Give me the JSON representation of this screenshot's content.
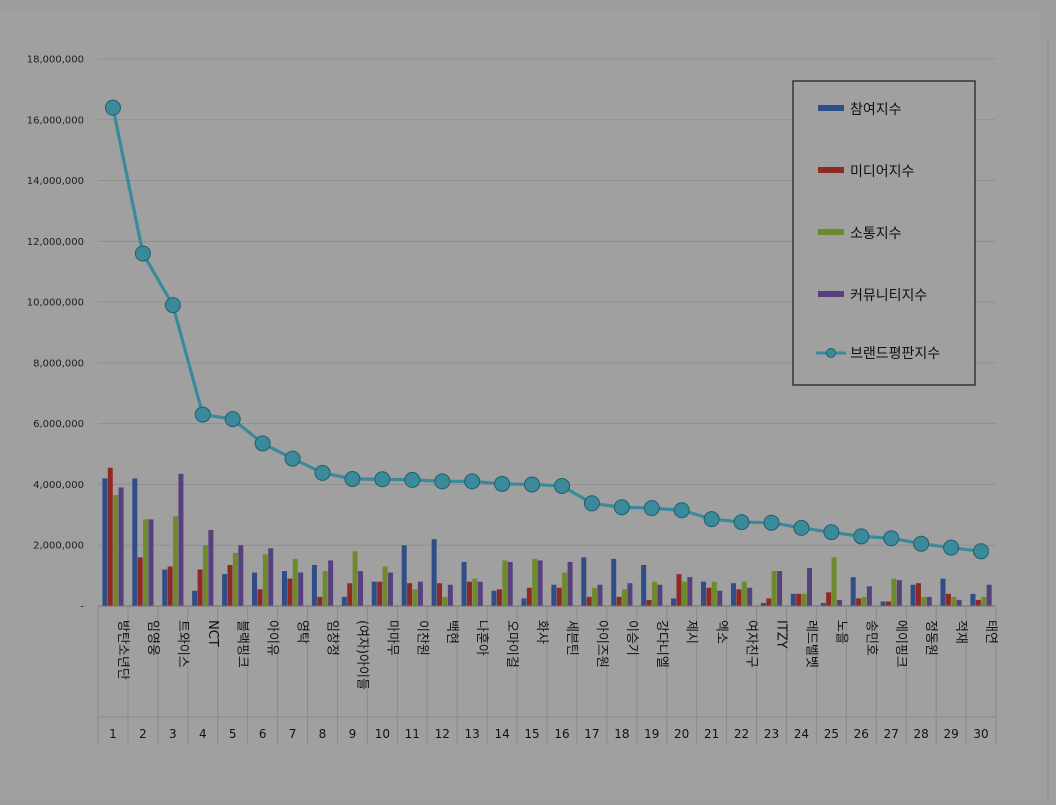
{
  "colors": {
    "background": "#9e9e9e",
    "plot_background": "#a0a0a0",
    "participation": "#2f4d86",
    "media": "#8e2a26",
    "communication": "#6f8a2c",
    "community": "#57407d",
    "brand": "#3a8a9c"
  },
  "chart_data": {
    "type": "bar",
    "title": "",
    "xlabel": "",
    "ylabel": "",
    "ylim": [
      0,
      18000000
    ],
    "y_ticks": [
      0,
      2000000,
      4000000,
      6000000,
      8000000,
      10000000,
      12000000,
      14000000,
      16000000,
      18000000
    ],
    "y_tick_labels": [
      "-",
      "2,000,000",
      "4,000,000",
      "6,000,000",
      "8,000,000",
      "10,000,000",
      "12,000,000",
      "14,000,000",
      "16,000,000",
      "18,000,000"
    ],
    "grid": true,
    "legend_position": "top-right",
    "categories": [
      "방탄소년단",
      "임영웅",
      "트와이스",
      "NCT",
      "블랙핑크",
      "아이유",
      "영탁",
      "임창정",
      "(여자)아이들",
      "마마무",
      "이찬원",
      "백현",
      "나훈아",
      "오마이걸",
      "화사",
      "세븐틴",
      "아이즈원",
      "이승기",
      "강다니엘",
      "제시",
      "엑소",
      "여자친구",
      "ITZY",
      "레드벨벳",
      "노을",
      "송민호",
      "에이핑크",
      "정동원",
      "적재",
      "태연"
    ],
    "ranks": [
      "1",
      "2",
      "3",
      "4",
      "5",
      "6",
      "7",
      "8",
      "9",
      "10",
      "11",
      "12",
      "13",
      "14",
      "15",
      "16",
      "17",
      "18",
      "19",
      "20",
      "21",
      "22",
      "23",
      "24",
      "25",
      "26",
      "27",
      "28",
      "29",
      "30"
    ],
    "series": [
      {
        "name": "참여지수",
        "type": "bar",
        "color": "#2f4d86",
        "values": [
          4200000,
          4200000,
          1200000,
          500000,
          1050000,
          1100000,
          1150000,
          1350000,
          300000,
          800000,
          2000000,
          2200000,
          1450000,
          500000,
          250000,
          700000,
          1600000,
          1550000,
          1350000,
          250000,
          800000,
          750000,
          100000,
          400000,
          100000,
          950000,
          150000,
          700000,
          900000,
          400000
        ]
      },
      {
        "name": "미디어지수",
        "type": "bar",
        "color": "#8e2a26",
        "values": [
          4550000,
          1600000,
          1300000,
          1200000,
          1350000,
          550000,
          900000,
          300000,
          750000,
          800000,
          750000,
          750000,
          800000,
          550000,
          600000,
          600000,
          300000,
          300000,
          200000,
          1050000,
          600000,
          550000,
          250000,
          400000,
          450000,
          250000,
          150000,
          750000,
          400000,
          200000
        ]
      },
      {
        "name": "소통지수",
        "type": "bar",
        "color": "#6f8a2c",
        "values": [
          3650000,
          2850000,
          2950000,
          2000000,
          1750000,
          1700000,
          1550000,
          1150000,
          1800000,
          1300000,
          550000,
          300000,
          900000,
          1500000,
          1550000,
          1100000,
          600000,
          550000,
          800000,
          800000,
          800000,
          800000,
          1150000,
          400000,
          1600000,
          300000,
          900000,
          300000,
          300000,
          300000
        ]
      },
      {
        "name": "커뮤니티지수",
        "type": "bar",
        "color": "#57407d",
        "values": [
          3900000,
          2850000,
          4350000,
          2500000,
          2000000,
          1900000,
          1100000,
          1500000,
          1150000,
          1100000,
          800000,
          700000,
          800000,
          1450000,
          1500000,
          1450000,
          700000,
          750000,
          700000,
          950000,
          500000,
          600000,
          1150000,
          1250000,
          200000,
          650000,
          850000,
          300000,
          200000,
          700000
        ]
      },
      {
        "name": "브랜드평판지수",
        "type": "line",
        "color": "#3a8a9c",
        "values": [
          16400000,
          11600000,
          9900000,
          6300000,
          6150000,
          5350000,
          4850000,
          4380000,
          4180000,
          4170000,
          4150000,
          4100000,
          4100000,
          4020000,
          4000000,
          3950000,
          3380000,
          3250000,
          3220000,
          3150000,
          2860000,
          2760000,
          2740000,
          2570000,
          2430000,
          2290000,
          2230000,
          2050000,
          1920000,
          1800000
        ]
      }
    ]
  }
}
